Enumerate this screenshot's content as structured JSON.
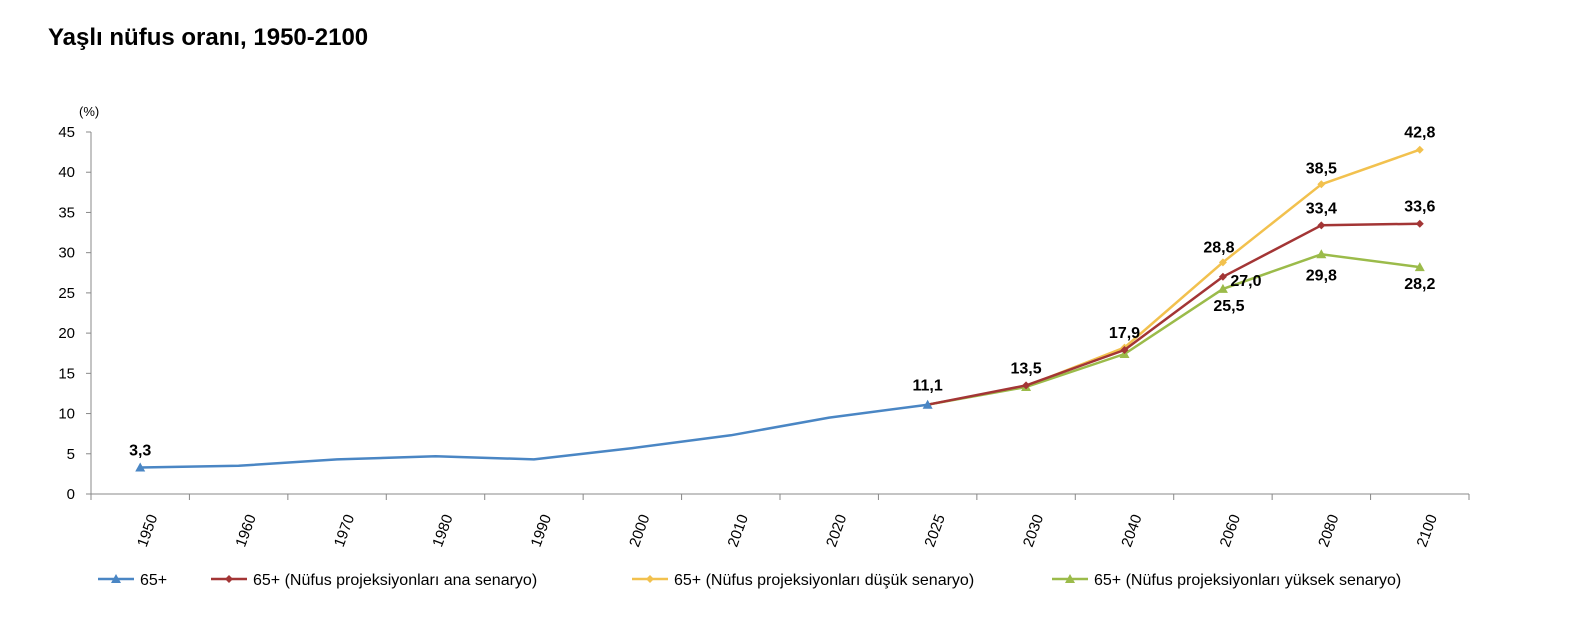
{
  "title": "Yaşlı nüfus oranı, 1950-2100",
  "chart_data": {
    "type": "line",
    "title": "Yaşlı nüfus oranı, 1950-2100",
    "ylabel": "(%)",
    "xlabel": "",
    "ylim": [
      0,
      45
    ],
    "yticks": [
      0,
      5,
      10,
      15,
      20,
      25,
      30,
      35,
      40,
      45
    ],
    "categories": [
      "1950",
      "1960",
      "1970",
      "1980",
      "1990",
      "2000",
      "2010",
      "2020",
      "2025",
      "2030",
      "2040",
      "2060",
      "2080",
      "2100"
    ],
    "legend_position": "bottom",
    "series": [
      {
        "name": "65+",
        "color": "#4a86c4",
        "marker": "triangle",
        "values": [
          3.3,
          3.5,
          4.3,
          4.7,
          4.3,
          5.7,
          7.3,
          9.5,
          11.1,
          null,
          null,
          null,
          null,
          null
        ],
        "labels": [
          "3,3",
          null,
          null,
          null,
          null,
          null,
          null,
          null,
          "11,1",
          null,
          null,
          null,
          null,
          null
        ]
      },
      {
        "name": "65+ (Nüfus projeksiyonları ana senaryo)",
        "color": "#a33535",
        "marker": "diamond",
        "values": [
          null,
          null,
          null,
          null,
          null,
          null,
          null,
          null,
          11.1,
          13.5,
          17.9,
          27.0,
          33.4,
          33.6
        ],
        "labels": [
          null,
          null,
          null,
          null,
          null,
          null,
          null,
          null,
          null,
          "13,5",
          "17,9",
          "27,0",
          "33,4",
          "33,6"
        ]
      },
      {
        "name": "65+ (Nüfus projeksiyonları düşük senaryo)",
        "color": "#f2c14e",
        "marker": "diamond",
        "values": [
          null,
          null,
          null,
          null,
          null,
          null,
          null,
          null,
          11.1,
          13.4,
          18.2,
          28.8,
          38.5,
          42.8
        ],
        "labels": [
          null,
          null,
          null,
          null,
          null,
          null,
          null,
          null,
          null,
          null,
          null,
          "28,8",
          "38,5",
          "42,8"
        ]
      },
      {
        "name": "65+ (Nüfus projeksiyonları yüksek senaryo)",
        "color": "#9bbb4a",
        "marker": "triangle",
        "values": [
          null,
          null,
          null,
          null,
          null,
          null,
          null,
          null,
          11.1,
          13.3,
          17.4,
          25.5,
          29.8,
          28.2
        ],
        "labels": [
          null,
          null,
          null,
          null,
          null,
          null,
          null,
          null,
          null,
          null,
          null,
          "25,5",
          "29,8",
          "28,2"
        ]
      }
    ]
  }
}
